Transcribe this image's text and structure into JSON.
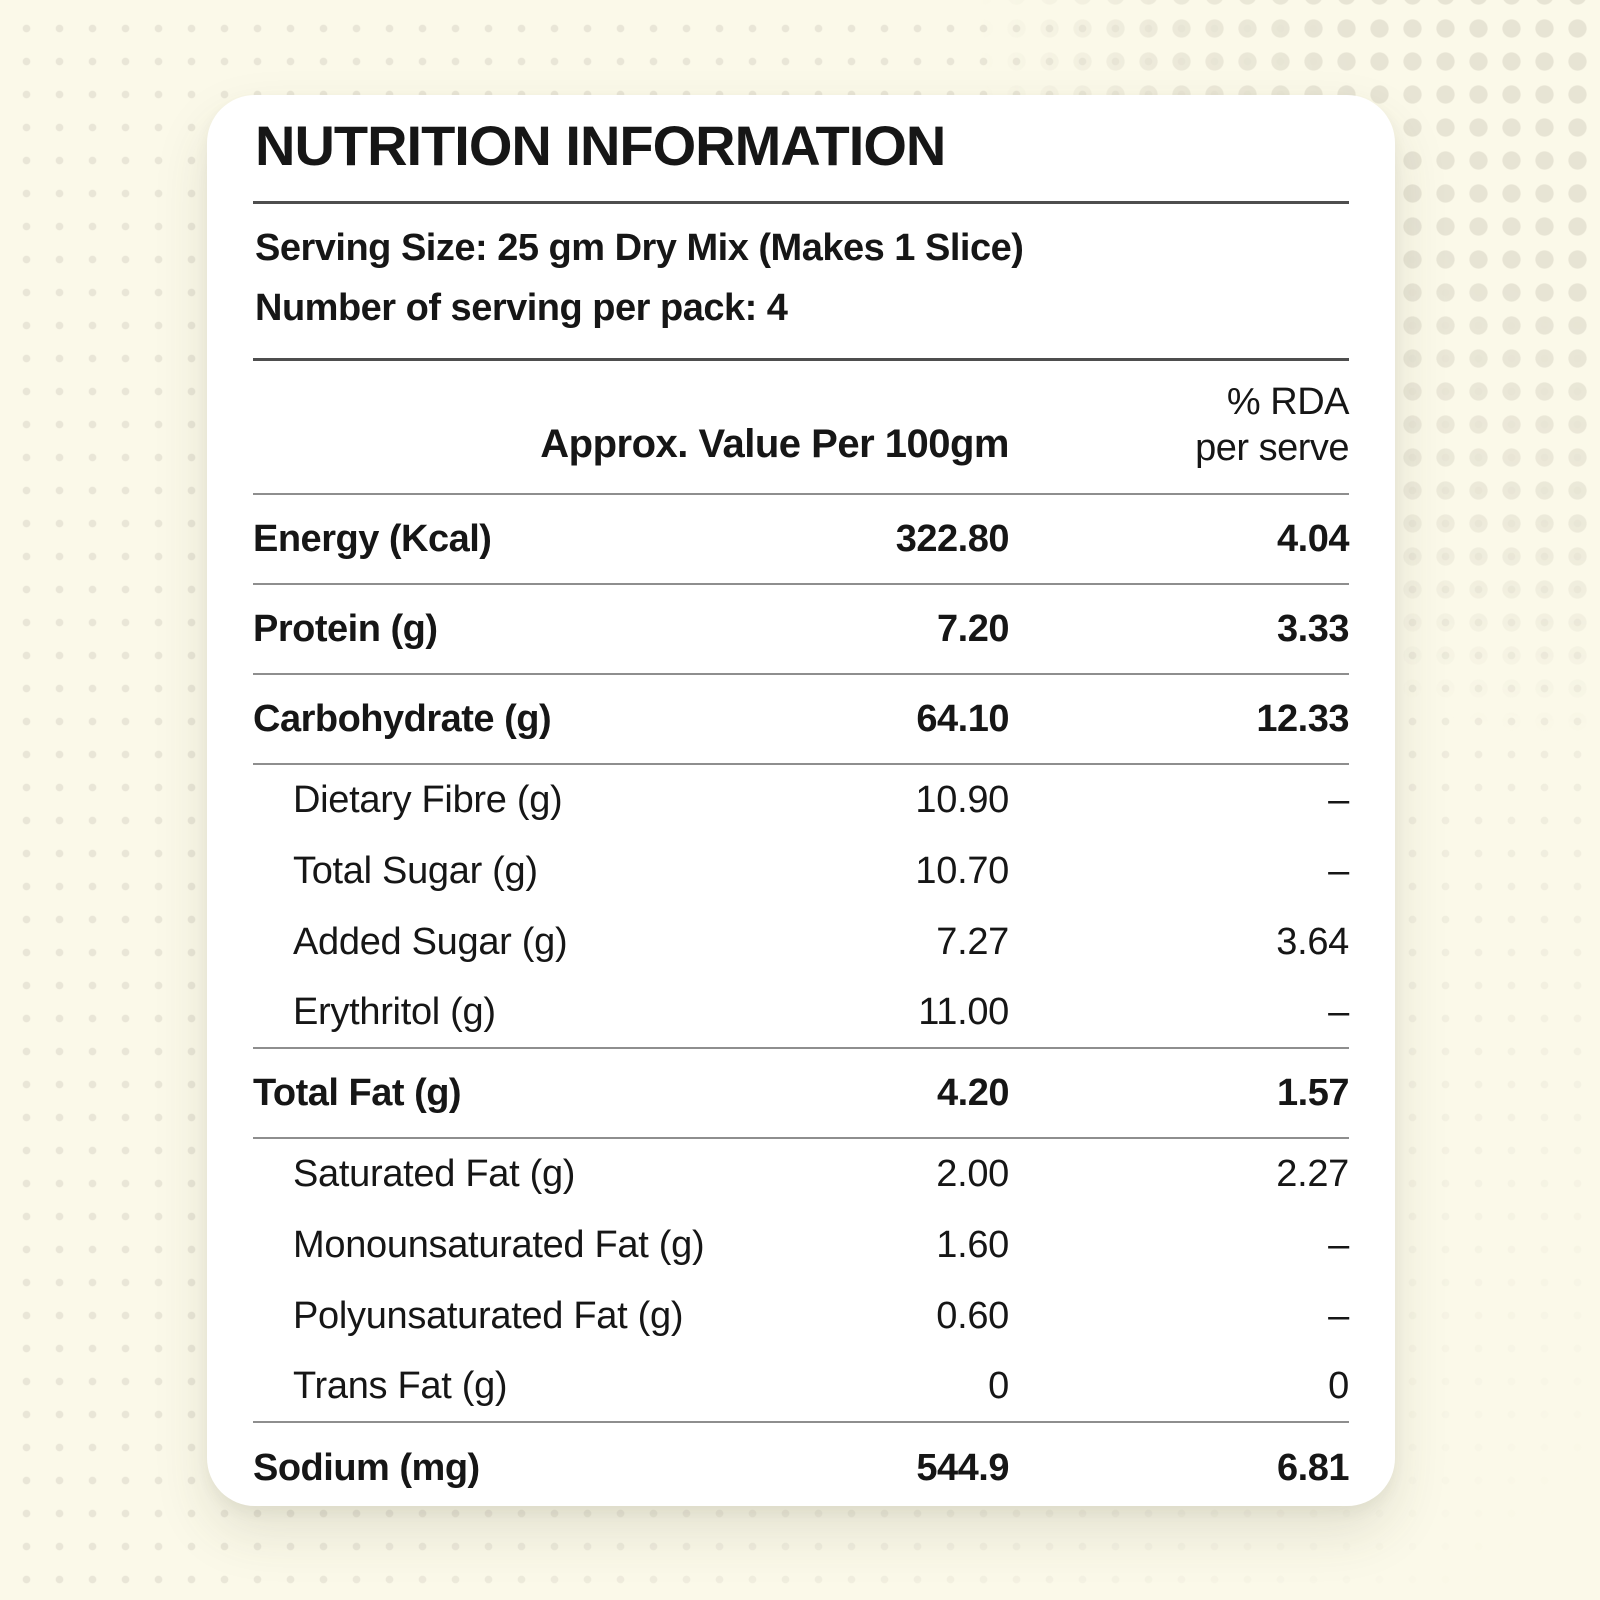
{
  "colors": {
    "background": "#fbf9e9",
    "dot": "#e9e6d7",
    "card": "#ffffff",
    "text": "#161616",
    "rule_dark": "#4e4e4e",
    "rule_mid": "#8e8e8e"
  },
  "card": {
    "title": "NUTRITION INFORMATION",
    "serving_size": "Serving Size: 25 gm Dry Mix (Makes 1 Slice)",
    "servings_per_pack": "Number of serving per pack: 4",
    "columns": {
      "value_header": "Approx. Value Per 100gm",
      "rda_header_line1": "% RDA",
      "rda_header_line2": "per serve"
    },
    "rows": [
      {
        "label": "Energy (Kcal)",
        "value": "322.80",
        "rda": "4.04",
        "style": "major",
        "divider_after": true
      },
      {
        "label": "Protein (g)",
        "value": "7.20",
        "rda": "3.33",
        "style": "major",
        "divider_after": true
      },
      {
        "label": "Carbohydrate (g)",
        "value": "64.10",
        "rda": "12.33",
        "style": "major",
        "divider_after": true
      },
      {
        "label": "Dietary Fibre (g)",
        "value": "10.90",
        "rda": "–",
        "style": "sub",
        "divider_after": false
      },
      {
        "label": "Total Sugar (g)",
        "value": "10.70",
        "rda": "–",
        "style": "sub",
        "divider_after": false
      },
      {
        "label": "Added Sugar (g)",
        "value": "7.27",
        "rda": "3.64",
        "style": "sub",
        "divider_after": false
      },
      {
        "label": "Erythritol (g)",
        "value": "11.00",
        "rda": "–",
        "style": "sub",
        "divider_after": true
      },
      {
        "label": "Total Fat (g)",
        "value": "4.20",
        "rda": "1.57",
        "style": "major",
        "divider_after": true
      },
      {
        "label": "Saturated Fat (g)",
        "value": "2.00",
        "rda": "2.27",
        "style": "sub",
        "divider_after": false
      },
      {
        "label": "Monounsaturated Fat (g)",
        "value": "1.60",
        "rda": "–",
        "style": "sub",
        "divider_after": false
      },
      {
        "label": "Polyunsaturated Fat (g)",
        "value": "0.60",
        "rda": "–",
        "style": "sub",
        "divider_after": false
      },
      {
        "label": "Trans Fat (g)",
        "value": "0",
        "rda": "0",
        "style": "sub",
        "divider_after": true
      },
      {
        "label": "Sodium (mg)",
        "value": "544.9",
        "rda": "6.81",
        "style": "major",
        "divider_after": false
      }
    ]
  }
}
